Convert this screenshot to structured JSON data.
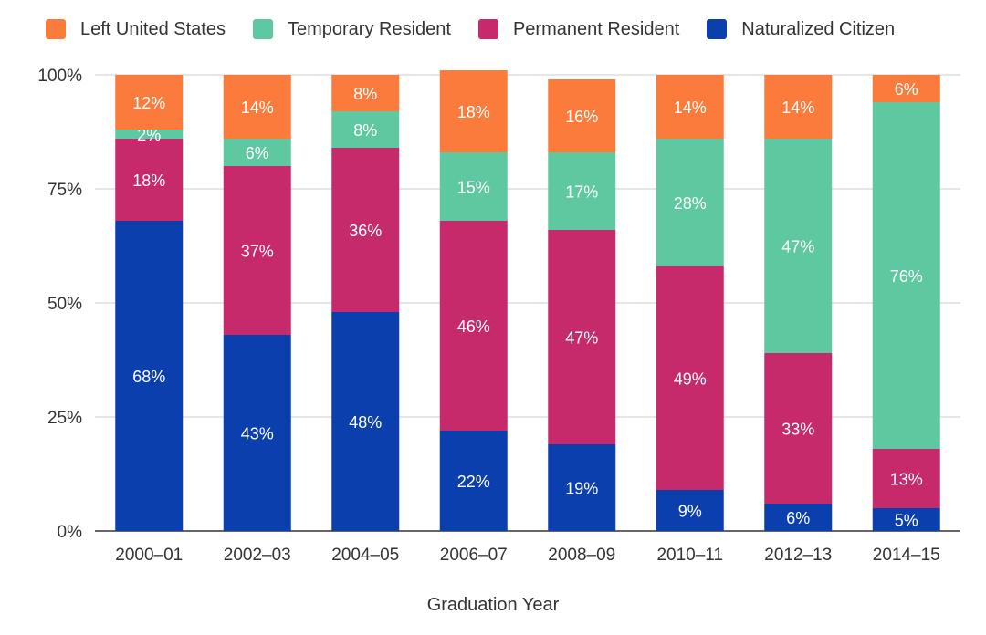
{
  "chart_data": {
    "type": "bar",
    "stacked": true,
    "percent": true,
    "title": "",
    "xlabel": "Graduation Year",
    "ylabel": "",
    "ylim": [
      0,
      100
    ],
    "yticks": [
      "0%",
      "25%",
      "50%",
      "75%",
      "100%"
    ],
    "categories": [
      "2000–01",
      "2002–03",
      "2004–05",
      "2006–07",
      "2008–09",
      "2010–11",
      "2012–13",
      "2014–15"
    ],
    "legend_position": "top-left",
    "series": [
      {
        "name": "Naturalized Citizen",
        "color": "#0c3fae",
        "values": [
          68,
          43,
          48,
          22,
          19,
          9,
          6,
          5
        ],
        "labels": [
          "68%",
          "43%",
          "48%",
          "22%",
          "19%",
          "9%",
          "6%",
          "5%"
        ]
      },
      {
        "name": "Permanent Resident",
        "color": "#c72a6b",
        "values": [
          18,
          37,
          36,
          46,
          47,
          49,
          33,
          13
        ],
        "labels": [
          "18%",
          "37%",
          "36%",
          "46%",
          "47%",
          "49%",
          "33%",
          "13%"
        ]
      },
      {
        "name": "Temporary Resident",
        "color": "#5ec8a0",
        "values": [
          2,
          6,
          8,
          15,
          17,
          28,
          47,
          76
        ],
        "labels": [
          "2%",
          "6%",
          "8%",
          "15%",
          "17%",
          "28%",
          "47%",
          "76%"
        ]
      },
      {
        "name": "Left United States",
        "color": "#fa7b3c",
        "values": [
          12,
          14,
          8,
          18,
          16,
          14,
          14,
          6
        ],
        "labels": [
          "12%",
          "14%",
          "8%",
          "18%",
          "16%",
          "14%",
          "14%",
          "6%"
        ]
      }
    ],
    "legend_order": [
      "Left United States",
      "Temporary Resident",
      "Permanent Resident",
      "Naturalized Citizen"
    ]
  }
}
